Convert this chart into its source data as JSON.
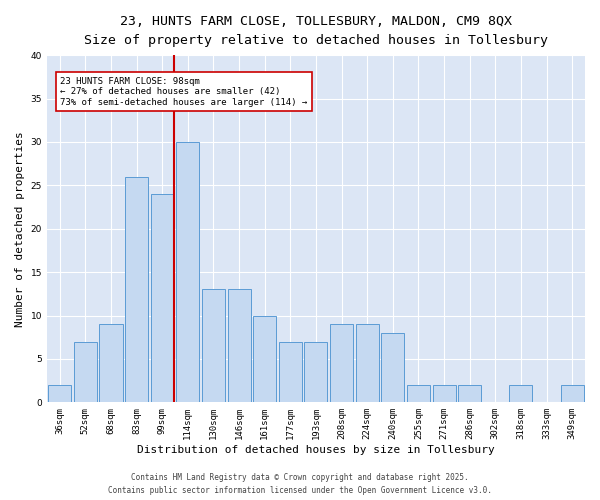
{
  "title_line1": "23, HUNTS FARM CLOSE, TOLLESBURY, MALDON, CM9 8QX",
  "title_line2": "Size of property relative to detached houses in Tollesbury",
  "xlabel": "Distribution of detached houses by size in Tollesbury",
  "ylabel": "Number of detached properties",
  "bar_labels": [
    "36sqm",
    "52sqm",
    "68sqm",
    "83sqm",
    "99sqm",
    "114sqm",
    "130sqm",
    "146sqm",
    "161sqm",
    "177sqm",
    "193sqm",
    "208sqm",
    "224sqm",
    "240sqm",
    "255sqm",
    "271sqm",
    "286sqm",
    "302sqm",
    "318sqm",
    "333sqm",
    "349sqm"
  ],
  "bar_values": [
    2,
    7,
    9,
    26,
    24,
    30,
    13,
    13,
    10,
    7,
    7,
    9,
    9,
    8,
    2,
    2,
    2,
    0,
    2,
    0,
    2
  ],
  "bar_color": "#c5d9f1",
  "bar_edge_color": "#5b9bd5",
  "vline_color": "#cc0000",
  "annotation_text": "23 HUNTS FARM CLOSE: 98sqm\n← 27% of detached houses are smaller (42)\n73% of semi-detached houses are larger (114) →",
  "annotation_box_color": "#ffffff",
  "annotation_box_edge": "#cc0000",
  "ylim": [
    0,
    40
  ],
  "yticks": [
    0,
    5,
    10,
    15,
    20,
    25,
    30,
    35,
    40
  ],
  "background_color": "#dce6f5",
  "footer_text": "Contains HM Land Registry data © Crown copyright and database right 2025.\nContains public sector information licensed under the Open Government Licence v3.0.",
  "title_fontsize": 9.5,
  "subtitle_fontsize": 8.5,
  "xlabel_fontsize": 8,
  "ylabel_fontsize": 8,
  "tick_fontsize": 6.5,
  "annotation_fontsize": 6.5,
  "footer_fontsize": 5.5
}
